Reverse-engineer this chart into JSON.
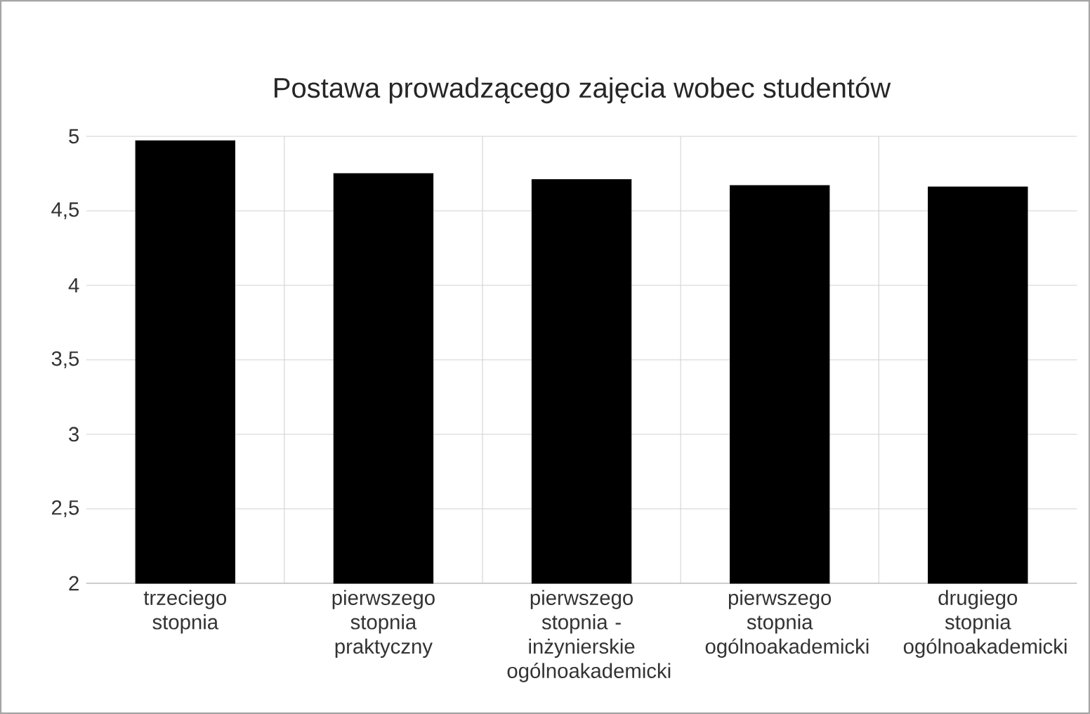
{
  "chart_data": {
    "type": "bar",
    "title": "Postawa prowadzącego zajęcia wobec studentów",
    "categories": [
      "trzeciego stopnia",
      "pierwszego stopnia praktyczny",
      "pierwszego stopnia - inżynierskie ogólnoakademicki",
      "pierwszego stopnia ogólnoakademicki",
      "drugiego stopnia ogólnoakademicki"
    ],
    "values": [
      4.97,
      4.75,
      4.71,
      4.67,
      4.66
    ],
    "color": "#000000",
    "ylim": [
      2,
      5
    ],
    "yticks": [
      2,
      {
        "value": 2.5,
        "label": "2,5"
      },
      3,
      {
        "value": 3.5,
        "label": "3,5"
      },
      4,
      {
        "value": 4.5,
        "label": "4,5"
      },
      5
    ],
    "grid": true
  }
}
